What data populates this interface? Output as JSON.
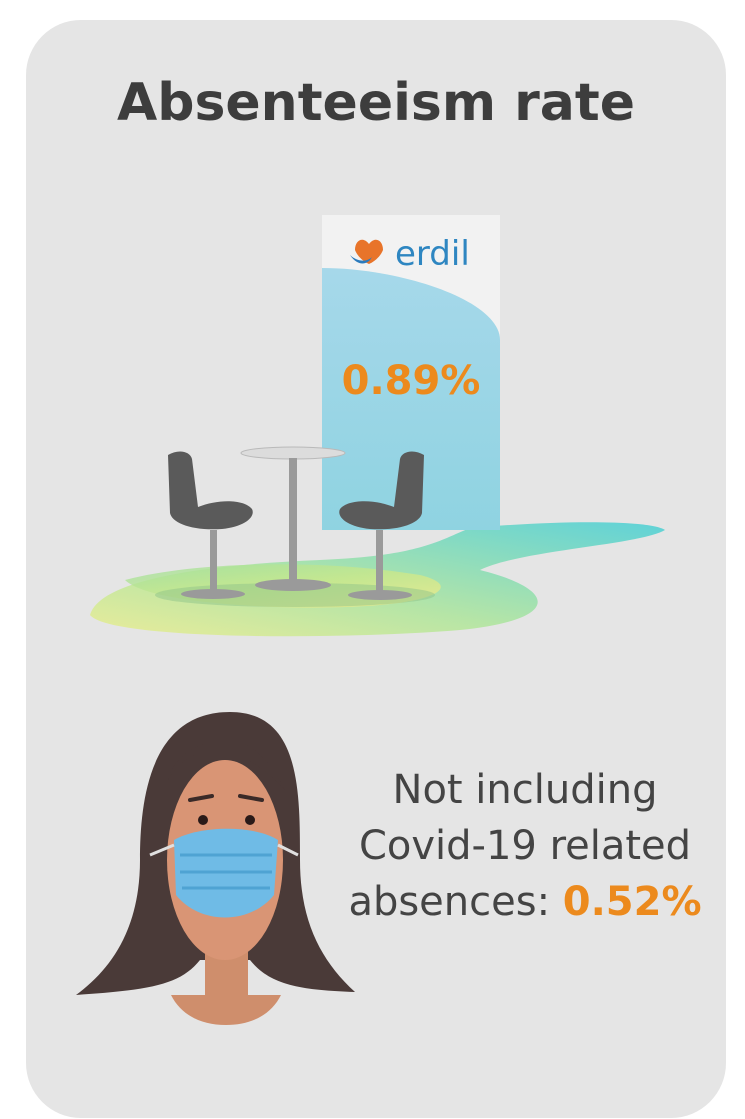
{
  "title": "Absenteeism rate",
  "banner": {
    "logo": "erdil",
    "value": "0.89%"
  },
  "note": {
    "lines": [
      "Not including",
      "Covid-19 related",
      "absences:"
    ],
    "value": "0.52%"
  }
}
